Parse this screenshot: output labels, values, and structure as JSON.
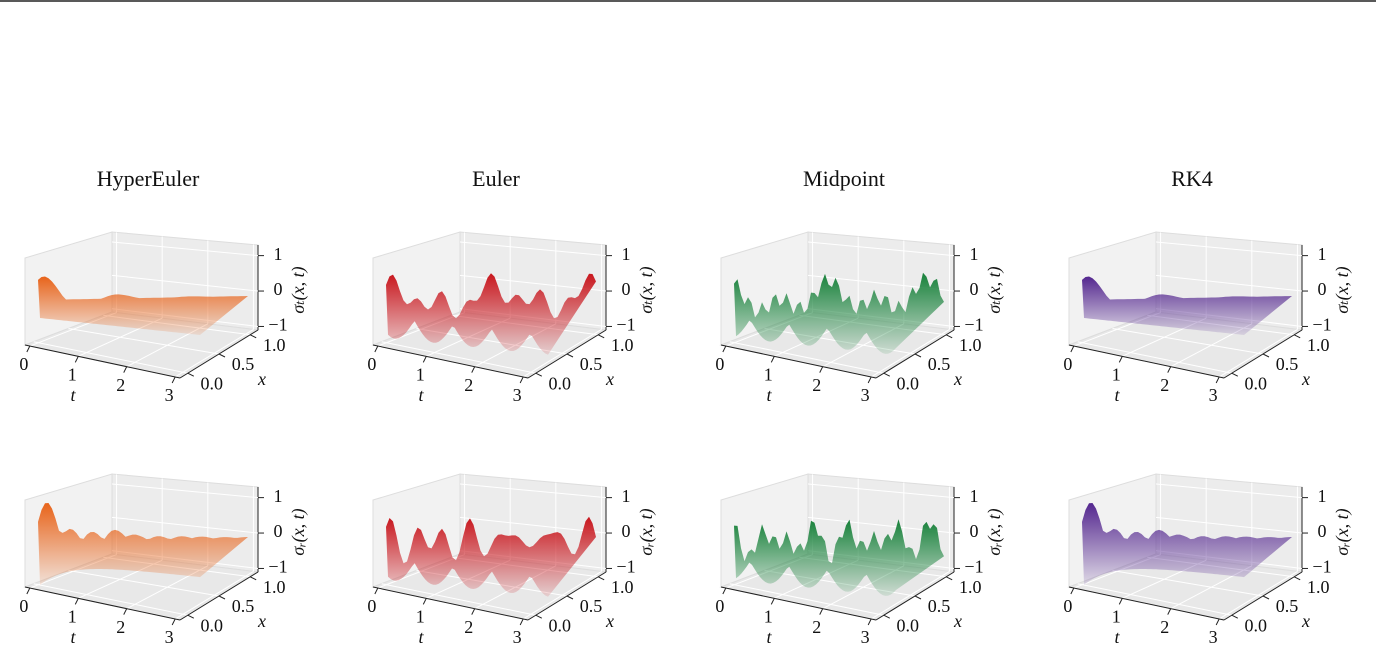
{
  "columns": [
    {
      "title": "HyperEuler",
      "color": "#e8641b"
    },
    {
      "title": "Euler",
      "color": "#c8161d"
    },
    {
      "title": "Midpoint",
      "color": "#17813a"
    },
    {
      "title": "RK4",
      "color": "#54278f"
    }
  ],
  "axes": {
    "t_label": "t",
    "x_label": "x",
    "z_labels": [
      "σₜ(x, t)",
      "σᵣ(x, t)"
    ],
    "t_ticks": [
      0,
      1,
      2,
      3
    ],
    "x_ticks": [
      {
        "value": 0,
        "label": "0.0"
      },
      {
        "value": 0.5,
        "label": "0.5"
      },
      {
        "value": 1,
        "label": "1.0"
      }
    ],
    "z_ticks": [
      {
        "value": -1,
        "label": "−1"
      },
      0,
      1
    ]
  }
}
